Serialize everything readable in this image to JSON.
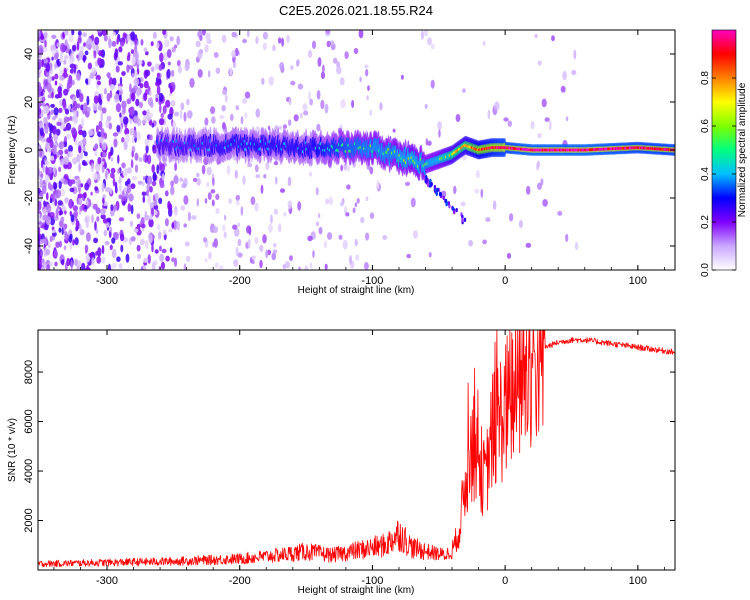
{
  "figure_title": "C2E5.2026.021.18.55.R24",
  "chart_data": [
    {
      "type": "heatmap",
      "title": "C2E5.2026.021.18.55.R24",
      "xlabel": "Height of straight line (km)",
      "ylabel": "Frequency (Hz)",
      "xlim": [
        -352,
        128
      ],
      "ylim": [
        -50,
        50
      ],
      "xticks": [
        -300,
        -200,
        -100,
        0,
        100
      ],
      "xtick_labels": [
        "-300",
        "-200",
        "-100",
        "0",
        "100"
      ],
      "yticks": [
        -40,
        -20,
        0,
        20,
        40
      ],
      "ytick_labels": [
        "-40",
        "-20",
        "0",
        "20",
        "40"
      ],
      "colorbar": {
        "label": "Normalized spectral amplitude",
        "range": [
          0,
          1
        ],
        "ticks": [
          0.0,
          0.2,
          0.4,
          0.6,
          0.8
        ],
        "tick_labels": [
          "0.0",
          "0.2",
          "0.4",
          "0.6",
          "0.8"
        ],
        "colormap": [
          "#ffffff",
          "#c9a8ff",
          "#8000ff",
          "#0000ff",
          "#00c0ff",
          "#00ff80",
          "#80ff00",
          "#ffff00",
          "#ff8000",
          "#ff0000",
          "#ff00c0"
        ]
      },
      "ridge": {
        "description": "frequency centre line of main signal",
        "x": [
          -250,
          -200,
          -150,
          -120,
          -100,
          -85,
          -70,
          -60,
          -50,
          -40,
          -30,
          -20,
          -10,
          0,
          20,
          60,
          100,
          128
        ],
        "freq": [
          2,
          2,
          1,
          1,
          1,
          -2,
          -4,
          -6,
          -4,
          -2,
          2,
          0,
          1,
          1,
          0,
          0,
          1,
          0
        ],
        "amplitude": [
          0.35,
          0.4,
          0.4,
          0.5,
          0.55,
          0.55,
          0.6,
          0.55,
          0.6,
          0.7,
          0.75,
          0.85,
          0.9,
          0.95,
          1.0,
          1.0,
          0.95,
          0.95
        ]
      }
    },
    {
      "type": "line",
      "xlabel": "Height of straight line (km)",
      "ylabel": "SNR (10 * v/v)",
      "xlim": [
        -352,
        128
      ],
      "ylim": [
        0,
        9700
      ],
      "xticks": [
        -300,
        -200,
        -100,
        0,
        100
      ],
      "xtick_labels": [
        "-300",
        "-200",
        "-100",
        "0",
        "100"
      ],
      "yticks": [
        2000,
        4000,
        6000,
        8000
      ],
      "ytick_labels": [
        "2000",
        "4000",
        "6000",
        "8000"
      ],
      "color": "#ff0000",
      "series": [
        {
          "name": "SNR",
          "x": [
            -352,
            -300,
            -250,
            -200,
            -170,
            -150,
            -130,
            -110,
            -90,
            -80,
            -70,
            -55,
            -45,
            -40,
            -35,
            -30,
            -25,
            -20,
            -15,
            -10,
            -5,
            0,
            10,
            20,
            30,
            40,
            50,
            60,
            80,
            100,
            128
          ],
          "y": [
            250,
            300,
            350,
            450,
            600,
            750,
            600,
            800,
            1000,
            1500,
            900,
            700,
            600,
            800,
            1500,
            3500,
            5000,
            4500,
            3500,
            5500,
            6000,
            6500,
            7500,
            8500,
            9000,
            9200,
            9300,
            9300,
            9150,
            9000,
            8800
          ]
        }
      ]
    }
  ]
}
